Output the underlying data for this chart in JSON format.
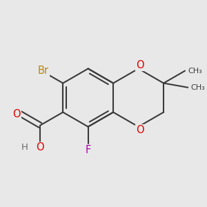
{
  "bg_color": "#e8e8e8",
  "bond_color": "#3a3a3a",
  "bond_width": 1.5,
  "atom_colors": {
    "Br": "#b8860b",
    "F": "#aa00aa",
    "O": "#dd0000",
    "H": "#6a6a6a",
    "C": "#3a3a3a"
  },
  "figsize": [
    3.0,
    3.0
  ],
  "dpi": 100,
  "xlim": [
    -3.5,
    3.5
  ],
  "ylim": [
    -3.5,
    3.5
  ]
}
